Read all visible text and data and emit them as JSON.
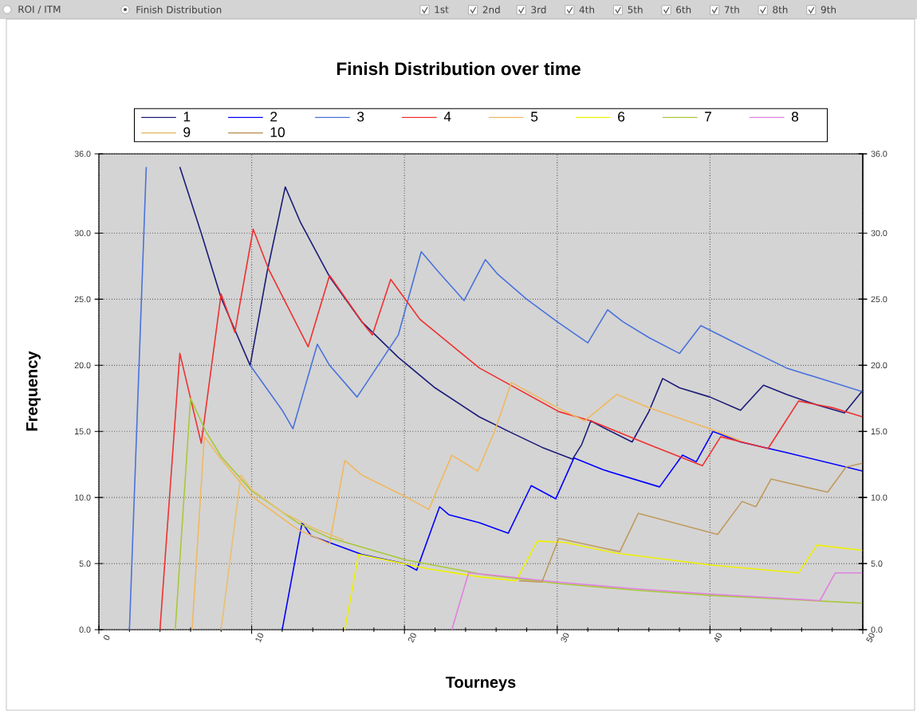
{
  "chart_data": {
    "type": "line",
    "title": "Finish Distribution over time",
    "xlabel": "Tourneys",
    "ylabel": "Frequency",
    "annotations": [
      "ROI / ITM",
      "Finish Distribution",
      "1st",
      "2nd",
      "3rd",
      "4th",
      "5th",
      "6th",
      "7th",
      "8th",
      "9th"
    ],
    "xlim": [
      0,
      50
    ],
    "xticks": [
      0,
      10,
      20,
      30,
      40,
      50
    ],
    "ylim": [
      0,
      36
    ],
    "yticks": [
      {
        "value": 0,
        "label": "0.0"
      },
      {
        "value": 5,
        "label": "5.0"
      },
      {
        "value": 10,
        "label": "10.0"
      },
      {
        "value": 15,
        "label": "15.0"
      },
      {
        "value": 20,
        "label": "20.0"
      },
      {
        "value": 25,
        "label": "25.0"
      },
      {
        "value": 30,
        "label": "30.0"
      },
      {
        "value": 36,
        "label": "36.0"
      }
    ],
    "y2lim": [
      0,
      36
    ],
    "y2ticks": [
      {
        "value": 0,
        "label": "0.0"
      },
      {
        "value": 5,
        "label": "5.0"
      },
      {
        "value": 10,
        "label": "10.0"
      },
      {
        "value": 15,
        "label": "15.0"
      },
      {
        "value": 20,
        "label": "20.0"
      },
      {
        "value": 25,
        "label": "25.0"
      },
      {
        "value": 30,
        "label": "30.0"
      },
      {
        "value": 36,
        "label": "36.0"
      }
    ],
    "grid": true,
    "legend": "top",
    "series": [
      {
        "name": "1",
        "color": "#1c1c78",
        "x": [
          5.3,
          6.7,
          8,
          9.9,
          11,
          12.2,
          13.2,
          15.1,
          17.2,
          19.6,
          22,
          24.9,
          27,
          29,
          31,
          31.6,
          32.2,
          33,
          34.9,
          36,
          36.9,
          38,
          40,
          42,
          43.5,
          45,
          47,
          48.8,
          50
        ],
        "values": [
          35,
          30.0,
          25.1,
          20.0,
          27,
          33.5,
          30.8,
          26.7,
          23.3,
          20.6,
          18.3,
          16.1,
          14.9,
          13.8,
          12.9,
          14.0,
          15.8,
          15.3,
          14.2,
          16.5,
          19.0,
          18.3,
          17.6,
          16.6,
          18.5,
          17.8,
          17.0,
          16.4,
          18.1
        ]
      },
      {
        "name": "2",
        "color": "#0000ff",
        "x": [
          12.0,
          13.3,
          13.9,
          17.2,
          20.0,
          20.8,
          22.3,
          22.9,
          24.9,
          26.8,
          28.3,
          29.9,
          31.1,
          33,
          36.7,
          38.2,
          39.1,
          40.2,
          42,
          45,
          50
        ],
        "values": [
          0,
          8.1,
          7.1,
          5.7,
          5.0,
          4.5,
          9.3,
          8.7,
          8.1,
          7.3,
          10.9,
          9.9,
          13.0,
          12.1,
          10.8,
          13.2,
          12.7,
          15.0,
          14.2,
          13.4,
          12.0
        ]
      },
      {
        "name": "3",
        "color": "#4a72dc",
        "x": [
          2.0,
          3.1,
          6.5,
          9.9,
          12.0,
          12.7,
          14.3,
          15.1,
          16.9,
          19.6,
          21.1,
          22.2,
          23.9,
          25.3,
          26.1,
          28,
          30,
          32.0,
          33.3,
          34.3,
          36,
          38.0,
          39.4,
          42,
          45,
          50
        ],
        "values": [
          0,
          35,
          null,
          20.0,
          16.6,
          15.2,
          21.6,
          20.0,
          17.6,
          22.3,
          28.6,
          27.1,
          24.9,
          28.0,
          26.9,
          25.0,
          23.3,
          21.7,
          24.2,
          23.3,
          22.1,
          20.9,
          23.0,
          21.5,
          19.8,
          18.0
        ]
      },
      {
        "name": "4",
        "color": "#f03030",
        "x": [
          4.0,
          5.3,
          6.7,
          8.0,
          8.9,
          10.1,
          11.1,
          13.7,
          15.1,
          17.4,
          17.9,
          19.1,
          21,
          24.9,
          30.1,
          32.2,
          36,
          39.5,
          40.7,
          43.8,
          45.8,
          48,
          50
        ],
        "values": [
          0,
          20.9,
          14.1,
          25.4,
          22.5,
          30.3,
          27.3,
          21.4,
          26.8,
          23.0,
          22.3,
          26.5,
          23.5,
          19.8,
          16.5,
          15.8,
          14.0,
          12.4,
          14.6,
          13.7,
          17.3,
          16.8,
          16.1
        ]
      },
      {
        "name": "5",
        "color": "#f0b860",
        "x": [
          6.1,
          6.9,
          8,
          10,
          13,
          15.1,
          16.1,
          17.2,
          20,
          21.6,
          23.1,
          24.8,
          25.9,
          27.0,
          30,
          31.8,
          33.9,
          36,
          40,
          42
        ],
        "values": [
          0,
          14.6,
          12.9,
          10.1,
          7.6,
          6.5,
          12.8,
          11.7,
          10.1,
          9.1,
          13.2,
          12.0,
          15.0,
          18.7,
          16.8,
          15.8,
          17.8,
          16.8,
          15.2,
          14.3
        ]
      },
      {
        "name": "6",
        "color": "#f0f000",
        "x": [
          16.1,
          17.0,
          21.6,
          24.9,
          27.3,
          28.7,
          30.5,
          33.8,
          40,
          45.8,
          47,
          50
        ],
        "values": [
          0,
          5.7,
          4.6,
          4.0,
          3.7,
          6.7,
          6.6,
          5.8,
          4.9,
          4.3,
          6.4,
          6.0
        ]
      },
      {
        "name": "7",
        "color": "#a8c838",
        "x": [
          5.0,
          6.0,
          7,
          8,
          10,
          13,
          15,
          20,
          25,
          30,
          35,
          40,
          45,
          50
        ],
        "values": [
          0,
          17.5,
          15,
          13.1,
          10.5,
          8.1,
          7.0,
          5.3,
          4.2,
          3.5,
          3.0,
          2.6,
          2.3,
          2.0
        ]
      },
      {
        "name": "8",
        "color": "#e080e0",
        "x": [
          23.1,
          24.2,
          26,
          30,
          35,
          40,
          47.2,
          48.2,
          50
        ],
        "values": [
          0,
          4.3,
          4.1,
          3.6,
          3.1,
          2.7,
          2.2,
          4.3,
          4.3
        ]
      },
      {
        "name": "9",
        "color": "#e8c070",
        "x": [
          8.0,
          9.3,
          10,
          12,
          14,
          16
        ],
        "values": [
          0,
          11.7,
          10.6,
          8.9,
          7.7,
          6.8
        ]
      },
      {
        "name": "10",
        "color": "#c09a60",
        "x": [
          27.5,
          29.0,
          30.1,
          34.1,
          35.3,
          40.5,
          42.1,
          43.0,
          44.0,
          47.7,
          48.9,
          50
        ],
        "values": [
          3.7,
          3.6,
          6.9,
          5.9,
          8.8,
          7.2,
          9.7,
          9.3,
          11.4,
          10.4,
          12.3,
          12.6
        ]
      }
    ]
  }
}
